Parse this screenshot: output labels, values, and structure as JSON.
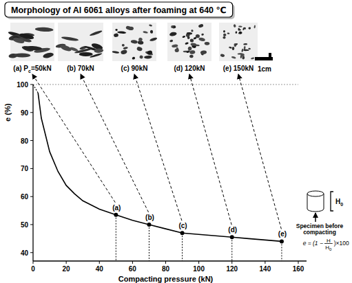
{
  "title": "Morphology of Al 6061 alloys after foaming at 640 ℃",
  "panels": [
    {
      "caption": "(a) P",
      "sub": "c",
      "tail": "=50kN"
    },
    {
      "caption": "(b) 70kN"
    },
    {
      "caption": "(c) 90kN"
    },
    {
      "caption": "(d) 120kN"
    },
    {
      "caption": "(e) 150kN"
    }
  ],
  "scale_bar": "1cm",
  "schematic": {
    "height_label": "H",
    "height_sub": "0",
    "caption": [
      "Specimen before",
      "compacting"
    ],
    "formula": {
      "lhs": "e = (1 −",
      "num": "H",
      "den": "H",
      "den_sub": "0",
      "rhs": ")×100"
    }
  },
  "chart_data": {
    "type": "line",
    "x_label": "Compacting pressure (kN)",
    "y_label": "e (%)",
    "xlim": [
      0,
      165
    ],
    "ylim": [
      37,
      100
    ],
    "xticks": [
      0,
      20,
      40,
      60,
      80,
      100,
      120,
      140,
      160
    ],
    "yticks": [
      40,
      50,
      60,
      70,
      80,
      90,
      100
    ],
    "grid": false,
    "series": [
      {
        "color": "#999999",
        "line_style": "dotted",
        "x": [
          0,
          160
        ],
        "values": [
          100,
          100
        ]
      },
      {
        "color": "#000000",
        "line_style": "dotted",
        "x": [
          0,
          3
        ],
        "values": [
          100,
          97
        ]
      },
      {
        "color": "#000000",
        "line_style": "solid",
        "x": [
          3,
          5,
          10,
          15,
          20,
          25,
          30,
          40,
          50,
          60,
          70,
          80,
          90,
          100,
          110,
          120,
          130,
          140,
          150
        ],
        "values": [
          97,
          88,
          76,
          69,
          64,
          61,
          58.5,
          55.5,
          53.5,
          51.5,
          50,
          48.5,
          47,
          46.5,
          46,
          45.5,
          45,
          44.5,
          44
        ]
      },
      {
        "type": "scatter",
        "marker": "circle",
        "color": "#000000",
        "x": [
          50,
          70,
          90,
          120,
          150
        ],
        "values": [
          53.5,
          50,
          47,
          45.5,
          44
        ],
        "labels": [
          "(a)",
          "(b)",
          "(c)",
          "(d)",
          "(e)"
        ]
      }
    ]
  }
}
